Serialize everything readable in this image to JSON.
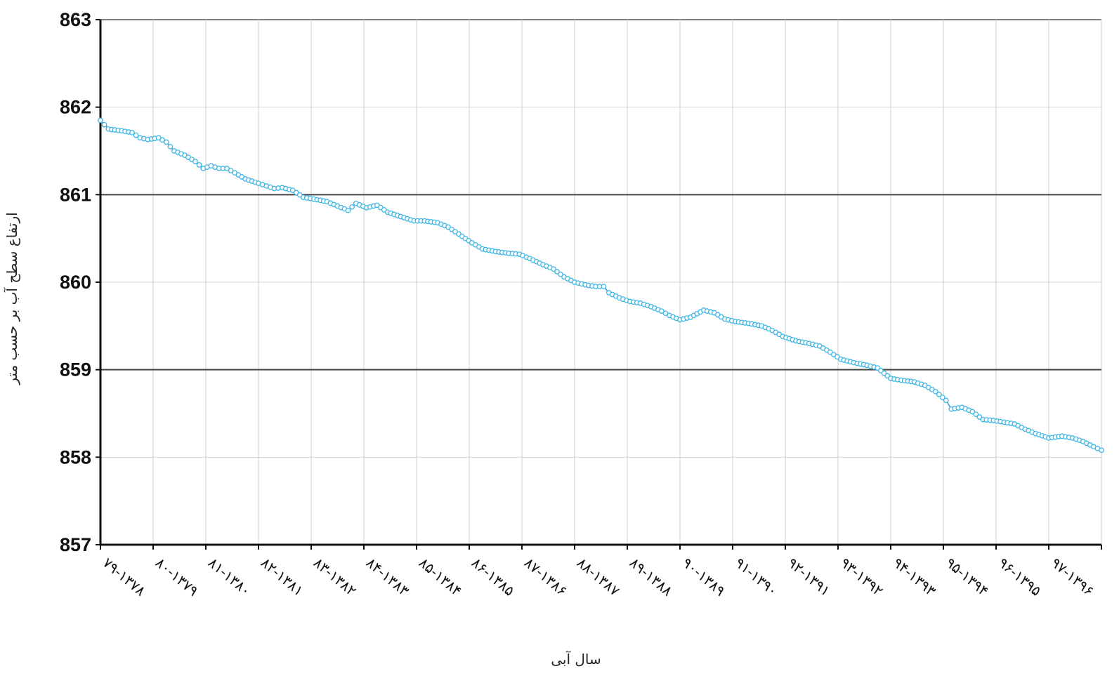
{
  "chart_data": {
    "type": "line",
    "title": "",
    "xlabel": "سال آبی",
    "ylabel": "ارتفاع سطح آب بر حسب متر",
    "ylim": [
      857,
      863
    ],
    "y_ticks": [
      "857",
      "858",
      "859",
      "860",
      "861",
      "862",
      "863"
    ],
    "x_categories": [
      "۷۹-۱۳۷۸",
      "۸۰-۱۳۷۹",
      "۸۱-۱۳۸۰",
      "۸۲-۱۳۸۱",
      "۸۳-۱۳۸۲",
      "۸۴-۱۳۸۳",
      "۸۵-۱۳۸۴",
      "۸۶-۱۳۸۵",
      "۸۷-۱۳۸۶",
      "۸۸-۱۳۸۷",
      "۸۹-۱۳۸۸",
      "۹۰-۱۳۸۹",
      "۹۱-۱۳۹۰",
      "۹۲-۱۳۹۱",
      "۹۳-۱۳۹۲",
      "۹۴-۱۳۹۳",
      "۹۵-۱۳۹۴",
      "۹۶-۱۳۹۵",
      "۹۷-۱۳۹۶"
    ],
    "x_units": "water-year index (0 = start of ۷۹-۱۳۷۸)",
    "grid": true,
    "reference_lines": [
      861,
      859
    ],
    "series": [
      {
        "points": [
          [
            0.0,
            861.85
          ],
          [
            0.15,
            861.75
          ],
          [
            0.4,
            861.73
          ],
          [
            0.6,
            861.71
          ],
          [
            0.75,
            861.65
          ],
          [
            0.9,
            861.63
          ],
          [
            1.1,
            861.65
          ],
          [
            1.25,
            861.6
          ],
          [
            1.4,
            861.5
          ],
          [
            1.6,
            861.45
          ],
          [
            1.8,
            861.38
          ],
          [
            1.95,
            861.3
          ],
          [
            2.1,
            861.33
          ],
          [
            2.25,
            861.3
          ],
          [
            2.4,
            861.3
          ],
          [
            2.55,
            861.25
          ],
          [
            2.75,
            861.18
          ],
          [
            3.0,
            861.13
          ],
          [
            3.15,
            861.1
          ],
          [
            3.3,
            861.07
          ],
          [
            3.45,
            861.08
          ],
          [
            3.65,
            861.05
          ],
          [
            3.85,
            860.97
          ],
          [
            4.05,
            860.95
          ],
          [
            4.3,
            860.92
          ],
          [
            4.5,
            860.87
          ],
          [
            4.7,
            860.82
          ],
          [
            4.85,
            860.9
          ],
          [
            5.05,
            860.85
          ],
          [
            5.25,
            860.88
          ],
          [
            5.45,
            860.8
          ],
          [
            5.7,
            860.75
          ],
          [
            5.95,
            860.7
          ],
          [
            6.15,
            860.7
          ],
          [
            6.4,
            860.68
          ],
          [
            6.6,
            860.63
          ],
          [
            6.8,
            860.55
          ],
          [
            7.05,
            860.45
          ],
          [
            7.25,
            860.38
          ],
          [
            7.5,
            860.35
          ],
          [
            7.75,
            860.33
          ],
          [
            7.95,
            860.32
          ],
          [
            8.15,
            860.27
          ],
          [
            8.4,
            860.2
          ],
          [
            8.6,
            860.15
          ],
          [
            8.8,
            860.06
          ],
          [
            9.0,
            860.0
          ],
          [
            9.2,
            859.97
          ],
          [
            9.4,
            859.95
          ],
          [
            9.55,
            859.95
          ],
          [
            9.65,
            859.88
          ],
          [
            9.85,
            859.82
          ],
          [
            10.05,
            859.78
          ],
          [
            10.25,
            859.76
          ],
          [
            10.45,
            859.72
          ],
          [
            10.65,
            859.67
          ],
          [
            10.8,
            859.62
          ],
          [
            11.0,
            859.57
          ],
          [
            11.2,
            859.6
          ],
          [
            11.45,
            859.68
          ],
          [
            11.65,
            859.65
          ],
          [
            11.85,
            859.58
          ],
          [
            12.05,
            859.55
          ],
          [
            12.3,
            859.53
          ],
          [
            12.55,
            859.5
          ],
          [
            12.75,
            859.45
          ],
          [
            12.95,
            859.38
          ],
          [
            13.2,
            859.33
          ],
          [
            13.45,
            859.3
          ],
          [
            13.65,
            859.27
          ],
          [
            13.85,
            859.2
          ],
          [
            14.05,
            859.12
          ],
          [
            14.3,
            859.08
          ],
          [
            14.55,
            859.05
          ],
          [
            14.75,
            859.02
          ],
          [
            15.0,
            858.9
          ],
          [
            15.2,
            858.88
          ],
          [
            15.45,
            858.86
          ],
          [
            15.65,
            858.82
          ],
          [
            15.85,
            858.75
          ],
          [
            16.05,
            858.65
          ],
          [
            16.15,
            858.55
          ],
          [
            16.35,
            858.57
          ],
          [
            16.55,
            858.52
          ],
          [
            16.75,
            858.43
          ],
          [
            16.95,
            858.42
          ],
          [
            17.15,
            858.4
          ],
          [
            17.35,
            858.38
          ],
          [
            17.55,
            858.32
          ],
          [
            17.75,
            858.27
          ],
          [
            18.0,
            858.22
          ],
          [
            18.25,
            858.24
          ],
          [
            18.45,
            858.22
          ],
          [
            18.65,
            858.18
          ],
          [
            18.85,
            858.12
          ],
          [
            19.0,
            858.08
          ]
        ]
      }
    ]
  }
}
